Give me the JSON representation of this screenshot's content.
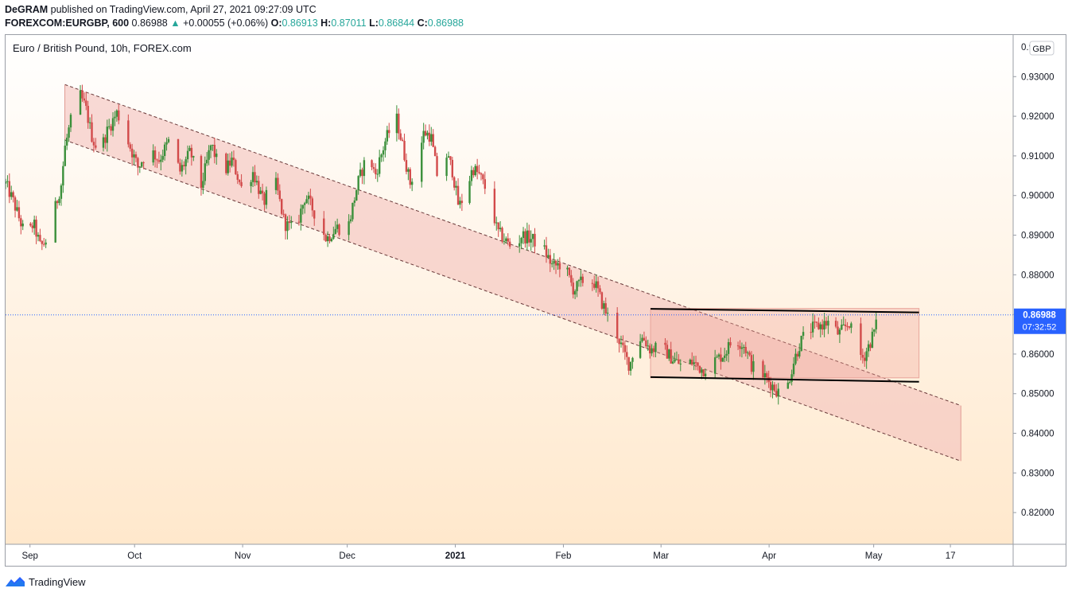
{
  "header": {
    "publisher_name": "DeGRAM",
    "publisher_rest": "published on TradingView.com, April 27, 2021 09:27:09 UTC",
    "symbol": "FOREXCOM:EURGBP, 600",
    "last": "0.86988",
    "change_arrow": "▲",
    "change": "+0.00055 (+0.06%)",
    "o_label": "O:",
    "o_val": "0.86913",
    "h_label": "H:",
    "h_val": "0.87011",
    "l_label": "L:",
    "l_val": "0.86844",
    "c_label": "C:",
    "c_val": "0.86988"
  },
  "footer": {
    "brand": "TradingView",
    "logo_icon": "tradingview-logo-icon"
  },
  "colors": {
    "up": "#26a69a",
    "candle_up": "#3a8f3a",
    "candle_down": "#d24a4a",
    "channel_fill": "#f3c2bd",
    "price_tag": "#2962ff",
    "grid_bg_top": "#ffffff",
    "grid_bg_bottom": "#ffe9cf"
  },
  "chart_data": {
    "type": "candlestick",
    "title": "Euro / British Pound, 10h, FOREX.com",
    "currency": "GBP",
    "y_axis": {
      "ticks": [
        "0.82000",
        "0.83000",
        "0.84000",
        "0.85000",
        "0.86000",
        "0.87000",
        "0.88000",
        "0.89000",
        "0.90000",
        "0.91000",
        "0.92000",
        "0.93000"
      ],
      "tick_values": [
        0.82,
        0.83,
        0.84,
        0.85,
        0.86,
        0.87,
        0.88,
        0.89,
        0.9,
        0.91,
        0.92,
        0.93
      ],
      "partial_top_label": "0.9",
      "range": [
        0.812,
        0.9405
      ]
    },
    "x_axis": {
      "labels": [
        "Sep",
        "Oct",
        "Nov",
        "Dec",
        "2021",
        "Feb",
        "Mar",
        "Apr",
        "May",
        "17"
      ],
      "label_days": [
        0,
        30,
        61,
        91,
        122,
        153,
        181,
        212,
        242,
        264
      ],
      "range_days": [
        -7,
        282
      ],
      "start_date": "2020-09-01"
    },
    "last_price": {
      "value": 0.86988,
      "label": "0.86988",
      "countdown": "07:32:52"
    },
    "price_path": [
      [
        -7,
        0.903
      ],
      [
        -5,
        0.899
      ],
      [
        -3,
        0.894
      ],
      [
        -1,
        0.889
      ],
      [
        1,
        0.893
      ],
      [
        3,
        0.887
      ],
      [
        5,
        0.889
      ],
      [
        7,
        0.896
      ],
      [
        9,
        0.903
      ],
      [
        10,
        0.912
      ],
      [
        12,
        0.92
      ],
      [
        14,
        0.926
      ],
      [
        16,
        0.922
      ],
      [
        18,
        0.914
      ],
      [
        20,
        0.911
      ],
      [
        22,
        0.916
      ],
      [
        25,
        0.921
      ],
      [
        28,
        0.914
      ],
      [
        31,
        0.907
      ],
      [
        34,
        0.912
      ],
      [
        37,
        0.909
      ],
      [
        40,
        0.914
      ],
      [
        43,
        0.906
      ],
      [
        46,
        0.911
      ],
      [
        49,
        0.902
      ],
      [
        52,
        0.913
      ],
      [
        55,
        0.905
      ],
      [
        58,
        0.909
      ],
      [
        61,
        0.901
      ],
      [
        64,
        0.906
      ],
      [
        67,
        0.898
      ],
      [
        70,
        0.905
      ],
      [
        73,
        0.893
      ],
      [
        76,
        0.891
      ],
      [
        79,
        0.9
      ],
      [
        82,
        0.895
      ],
      [
        85,
        0.889
      ],
      [
        88,
        0.892
      ],
      [
        91,
        0.891
      ],
      [
        94,
        0.903
      ],
      [
        97,
        0.911
      ],
      [
        99,
        0.905
      ],
      [
        102,
        0.914
      ],
      [
        105,
        0.92
      ],
      [
        107,
        0.912
      ],
      [
        109,
        0.903
      ],
      [
        111,
        0.908
      ],
      [
        113,
        0.916
      ],
      [
        115,
        0.915
      ],
      [
        117,
        0.904
      ],
      [
        119,
        0.911
      ],
      [
        121,
        0.907
      ],
      [
        123,
        0.897
      ],
      [
        125,
        0.901
      ],
      [
        127,
        0.907
      ],
      [
        129,
        0.905
      ],
      [
        132,
        0.899
      ],
      [
        134,
        0.891
      ],
      [
        137,
        0.888
      ],
      [
        139,
        0.886
      ],
      [
        141,
        0.89
      ],
      [
        144,
        0.889
      ],
      [
        147,
        0.887
      ],
      [
        150,
        0.882
      ],
      [
        153,
        0.883
      ],
      [
        156,
        0.876
      ],
      [
        159,
        0.879
      ],
      [
        162,
        0.878
      ],
      [
        164,
        0.873
      ],
      [
        166,
        0.869
      ],
      [
        168,
        0.866
      ],
      [
        170,
        0.861
      ],
      [
        172,
        0.857
      ],
      [
        174,
        0.864
      ],
      [
        176,
        0.864
      ],
      [
        178,
        0.861
      ],
      [
        181,
        0.862
      ],
      [
        184,
        0.859
      ],
      [
        187,
        0.857
      ],
      [
        190,
        0.858
      ],
      [
        193,
        0.856
      ],
      [
        196,
        0.858
      ],
      [
        199,
        0.86
      ],
      [
        202,
        0.864
      ],
      [
        205,
        0.862
      ],
      [
        207,
        0.857
      ],
      [
        210,
        0.855
      ],
      [
        213,
        0.852
      ],
      [
        215,
        0.85
      ],
      [
        217,
        0.851
      ],
      [
        219,
        0.858
      ],
      [
        221,
        0.863
      ],
      [
        223,
        0.866
      ],
      [
        226,
        0.867
      ],
      [
        229,
        0.868
      ],
      [
        232,
        0.865
      ],
      [
        235,
        0.868
      ],
      [
        237,
        0.861
      ],
      [
        239,
        0.859
      ],
      [
        241,
        0.863
      ],
      [
        243,
        0.868
      ],
      [
        245,
        0.8699
      ]
    ],
    "drawings": [
      {
        "type": "parallel_channel",
        "label": "descending channel",
        "start_day": 10,
        "end_day": 267,
        "upper_start": 0.928,
        "upper_end": 0.847,
        "lower_start": 0.914,
        "lower_end": 0.833
      },
      {
        "type": "rectangle",
        "label": "range box",
        "start_day": 178,
        "end_day": 255,
        "top": 0.8715,
        "bottom": 0.854
      },
      {
        "type": "trend_line",
        "label": "range top",
        "start_day": 178,
        "end_day": 255,
        "start": 0.8714,
        "end": 0.8705
      },
      {
        "type": "trend_line",
        "label": "range bottom",
        "start_day": 178,
        "end_day": 255,
        "start": 0.8542,
        "end": 0.853
      }
    ],
    "grid": false,
    "legend": "none"
  }
}
